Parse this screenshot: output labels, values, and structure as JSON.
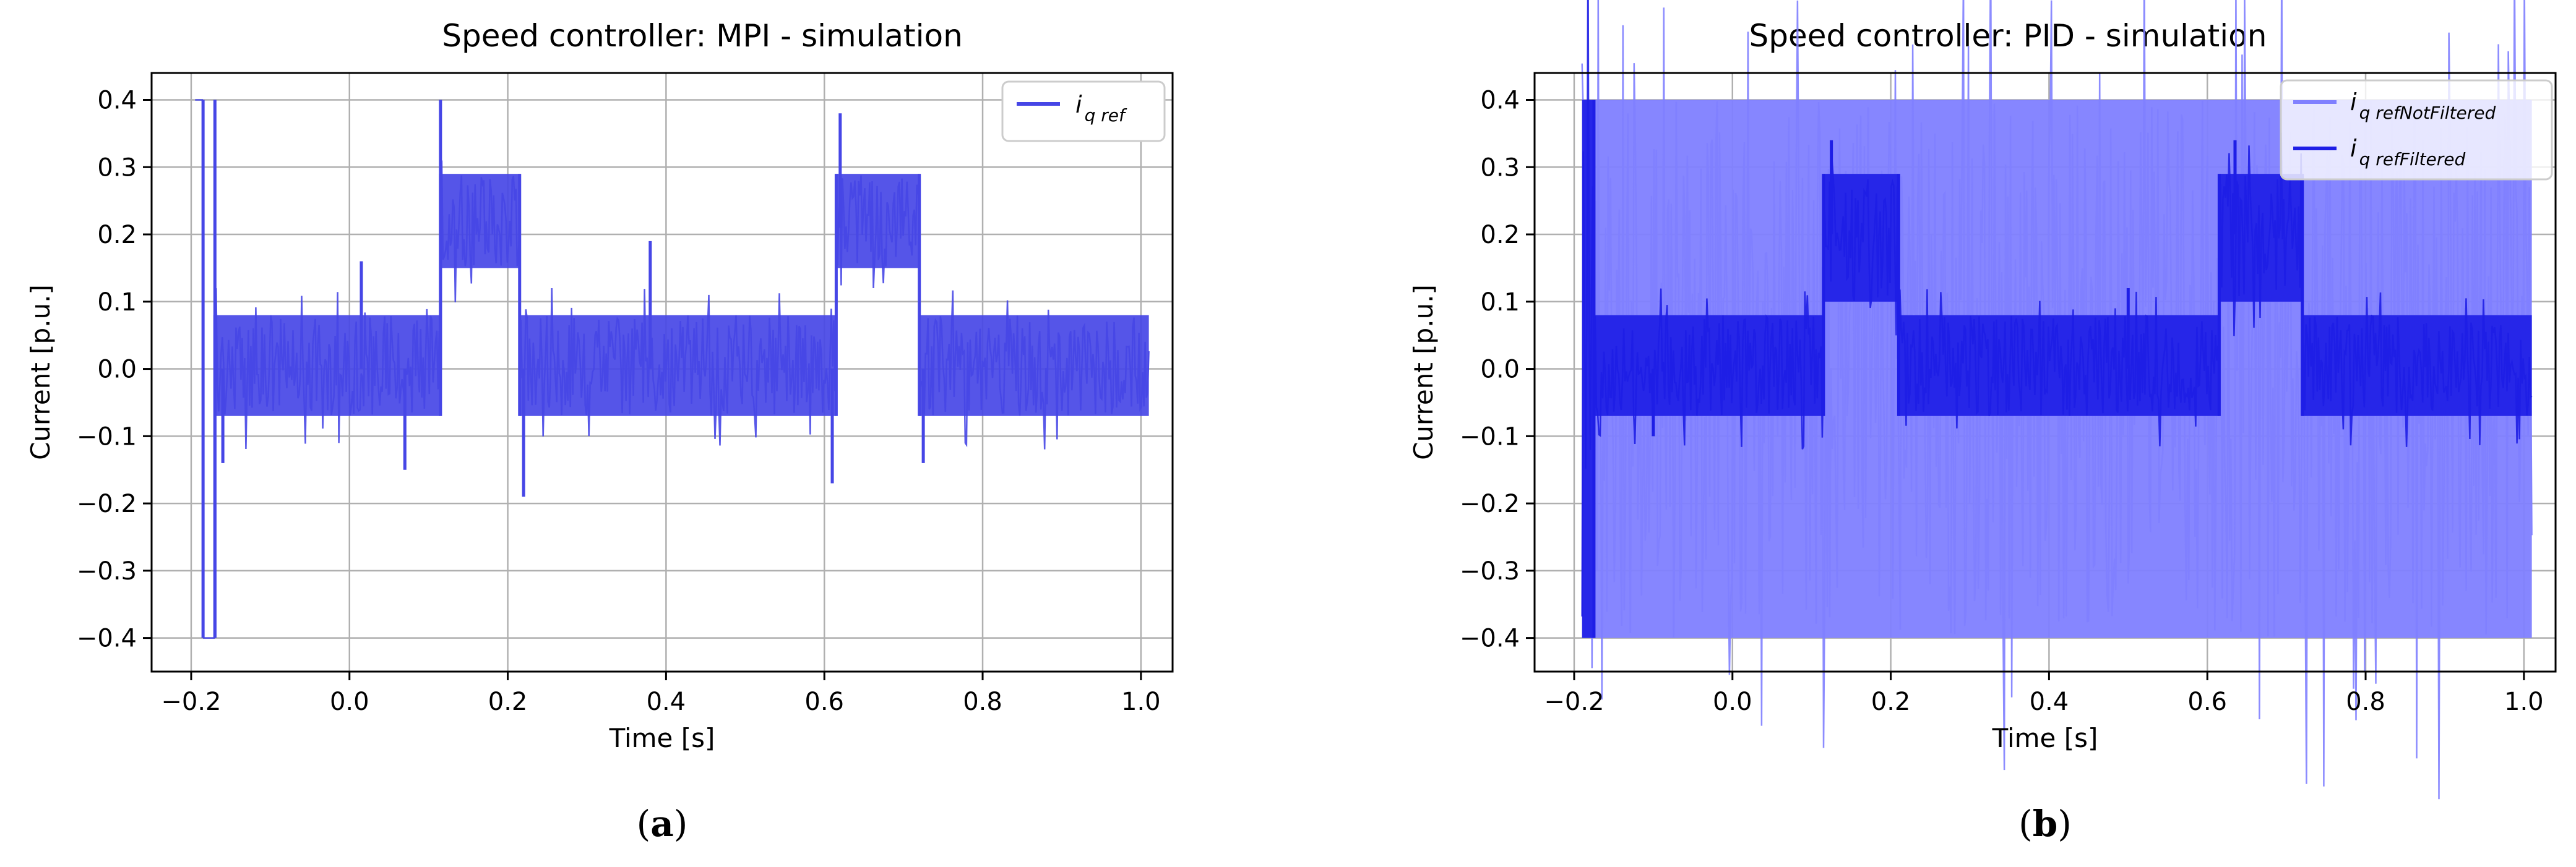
{
  "chart_data": [
    {
      "type": "line",
      "title": "Speed controller: MPI - simulation",
      "xlabel": "Time [s]",
      "ylabel": "Current [p.u.]",
      "xlim": [
        -0.25,
        1.04
      ],
      "ylim": [
        -0.45,
        0.44
      ],
      "xticks": [
        -0.2,
        0.0,
        0.2,
        0.4,
        0.6,
        0.8,
        1.0
      ],
      "xtick_labels": [
        "−0.2",
        "0.0",
        "0.2",
        "0.4",
        "0.6",
        "0.8",
        "1.0"
      ],
      "yticks": [
        -0.4,
        -0.3,
        -0.2,
        -0.1,
        0.0,
        0.1,
        0.2,
        0.3,
        0.4
      ],
      "ytick_labels": [
        "−0.4",
        "−0.3",
        "−0.2",
        "−0.1",
        "0.0",
        "0.1",
        "0.2",
        "0.3",
        "0.4"
      ],
      "grid": true,
      "legend_position": "top-right",
      "caption": "a",
      "series": [
        {
          "name": "i_q ref",
          "legend_main": "i",
          "legend_sub": "q ref",
          "color": "#4646e6",
          "segments": [
            {
              "x0": -0.195,
              "x1": -0.185,
              "level": 0.4,
              "band": [
                0.4,
                0.4
              ]
            },
            {
              "x0": -0.185,
              "x1": -0.17,
              "level": -0.4,
              "band": [
                -0.4,
                -0.4
              ]
            },
            {
              "x0": -0.17,
              "x1": 0.115,
              "level": 0.0,
              "band": [
                -0.07,
                0.08
              ]
            },
            {
              "x0": 0.115,
              "x1": 0.215,
              "level": 0.21,
              "band": [
                0.15,
                0.29
              ]
            },
            {
              "x0": 0.215,
              "x1": 0.615,
              "level": 0.0,
              "band": [
                -0.07,
                0.08
              ]
            },
            {
              "x0": 0.615,
              "x1": 0.72,
              "level": 0.21,
              "band": [
                0.15,
                0.29
              ]
            },
            {
              "x0": 0.72,
              "x1": 1.01,
              "level": 0.0,
              "band": [
                -0.07,
                0.08
              ]
            }
          ],
          "peaks": [
            {
              "x": -0.17,
              "y": 0.4
            },
            {
              "x": -0.16,
              "y": -0.14
            },
            {
              "x": 0.015,
              "y": 0.16
            },
            {
              "x": 0.07,
              "y": -0.15
            },
            {
              "x": 0.115,
              "y": 0.4
            },
            {
              "x": 0.22,
              "y": -0.19
            },
            {
              "x": 0.38,
              "y": 0.19
            },
            {
              "x": 0.61,
              "y": -0.17
            },
            {
              "x": 0.62,
              "y": 0.38
            },
            {
              "x": 0.725,
              "y": -0.14
            }
          ]
        }
      ]
    },
    {
      "type": "line",
      "title": "Speed controller: PID - simulation",
      "xlabel": "Time [s]",
      "ylabel": "Current [p.u.]",
      "xlim": [
        -0.25,
        1.04
      ],
      "ylim": [
        -0.45,
        0.44
      ],
      "xticks": [
        -0.2,
        0.0,
        0.2,
        0.4,
        0.6,
        0.8,
        1.0
      ],
      "xtick_labels": [
        "−0.2",
        "0.0",
        "0.2",
        "0.4",
        "0.6",
        "0.8",
        "1.0"
      ],
      "yticks": [
        -0.4,
        -0.3,
        -0.2,
        -0.1,
        0.0,
        0.1,
        0.2,
        0.3,
        0.4
      ],
      "ytick_labels": [
        "−0.4",
        "−0.3",
        "−0.2",
        "−0.1",
        "0.0",
        "0.1",
        "0.2",
        "0.3",
        "0.4"
      ],
      "grid": true,
      "legend_position": "top-right",
      "caption": "b",
      "series": [
        {
          "name": "i_q refNotFiltered",
          "legend_main": "i",
          "legend_sub": "q refNotFiltered",
          "color": "#8080ff",
          "segments": [
            {
              "x0": -0.19,
              "x1": 1.01,
              "level": 0.0,
              "band": [
                -0.4,
                0.4
              ]
            }
          ],
          "peaks": []
        },
        {
          "name": "i_q refFiltered",
          "legend_main": "i",
          "legend_sub": "q refFiltered",
          "color": "#1e1ee6",
          "segments": [
            {
              "x0": -0.19,
              "x1": -0.175,
              "level": 0.0,
              "band": [
                -0.4,
                0.4
              ]
            },
            {
              "x0": -0.175,
              "x1": 0.115,
              "level": 0.0,
              "band": [
                -0.07,
                0.08
              ]
            },
            {
              "x0": 0.115,
              "x1": 0.21,
              "level": 0.2,
              "band": [
                0.1,
                0.29
              ]
            },
            {
              "x0": 0.21,
              "x1": 0.615,
              "level": 0.0,
              "band": [
                -0.07,
                0.08
              ]
            },
            {
              "x0": 0.615,
              "x1": 0.72,
              "level": 0.2,
              "band": [
                0.1,
                0.29
              ]
            },
            {
              "x0": 0.72,
              "x1": 1.01,
              "level": 0.0,
              "band": [
                -0.07,
                0.08
              ]
            }
          ],
          "peaks": [
            {
              "x": 0.125,
              "y": 0.34
            },
            {
              "x": 0.635,
              "y": 0.34
            },
            {
              "x": -0.1,
              "y": -0.1
            },
            {
              "x": 0.5,
              "y": 0.12
            }
          ]
        }
      ]
    }
  ]
}
